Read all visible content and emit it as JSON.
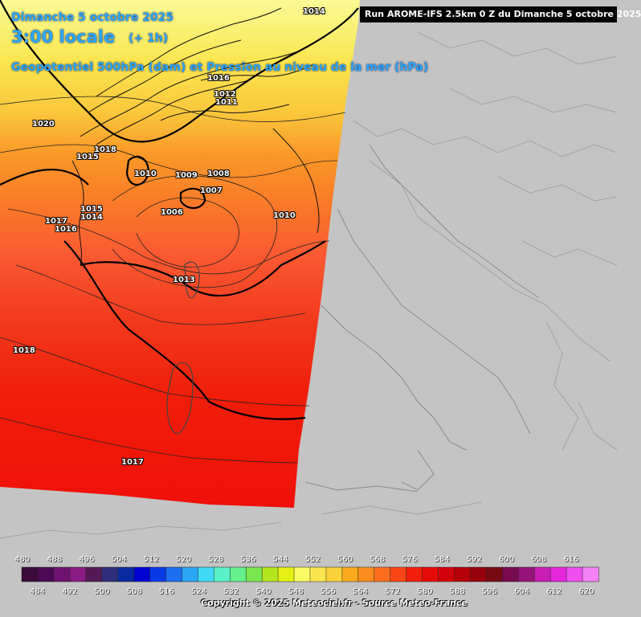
{
  "header": {
    "date": "Dimanche 5 octobre 2025",
    "time": "3:00 locale",
    "step": "(+ 1h)",
    "parameter": "Geopotentiel 500hPa (dam) et Pression au niveau de la mer (hPa)",
    "run": "Run AROME-IFS 2.5km 0 Z du Dimanche 5 octobre 2025"
  },
  "pressure_labels": [
    "1014",
    "1016",
    "1012",
    "1011",
    "1020",
    "1018",
    "1015",
    "1010",
    "1009",
    "1008",
    "1007",
    "1006",
    "1017",
    "1016",
    "1015",
    "1014",
    "1010",
    "1013",
    "1018",
    "1017"
  ],
  "legend": {
    "top_labels": [
      "480",
      "488",
      "496",
      "504",
      "512",
      "520",
      "528",
      "536",
      "544",
      "552",
      "560",
      "568",
      "576",
      "584",
      "592",
      "600",
      "608",
      "616"
    ],
    "bottom_labels": [
      "484",
      "492",
      "500",
      "508",
      "516",
      "524",
      "532",
      "540",
      "548",
      "556",
      "564",
      "572",
      "580",
      "588",
      "596",
      "604",
      "612",
      "620"
    ],
    "colors": [
      "#3a0a3a",
      "#4c0a55",
      "#6e1470",
      "#8a1a84",
      "#551a55",
      "#2e2e7a",
      "#0a2aa0",
      "#0000d0",
      "#0a3ae6",
      "#1e6ef0",
      "#2aa6f5",
      "#40d8f5",
      "#5af0c8",
      "#64f08c",
      "#7ae650",
      "#b4e61e",
      "#e6f014",
      "#fafa64",
      "#fae650",
      "#fad23c",
      "#faaa1e",
      "#fa8c1e",
      "#fa6e1e",
      "#fa4614",
      "#f01e0a",
      "#e60a0a",
      "#d2000a",
      "#b4000a",
      "#96000a",
      "#780a14",
      "#780a50",
      "#96147a",
      "#c81eb4",
      "#e628dc",
      "#f050f0",
      "#f582f5"
    ]
  },
  "copyright": "Copyright © 2025 Meteociel.fr - Source Meteo-France"
}
